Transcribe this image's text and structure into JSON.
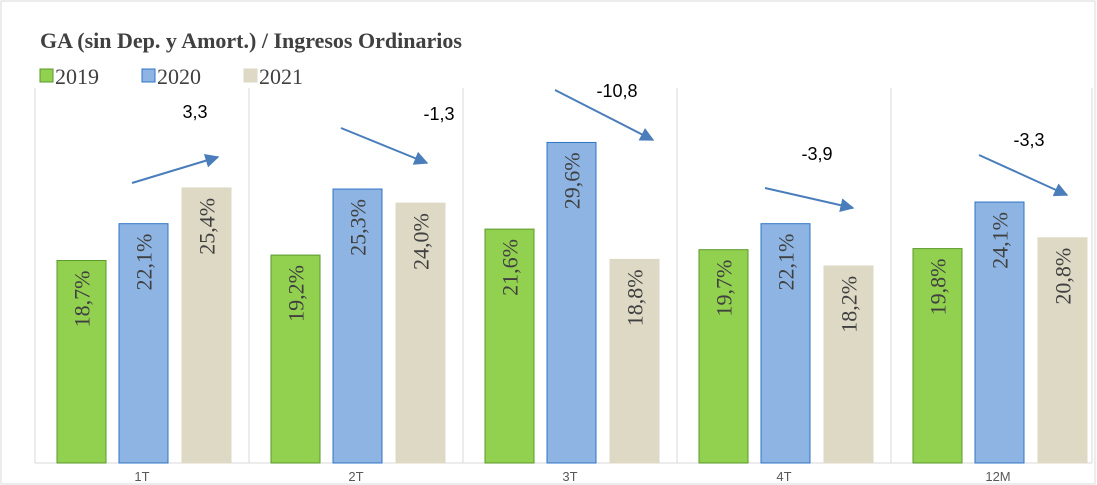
{
  "chart_data": {
    "type": "bar",
    "title": "GA (sin Dep. y Amort.) / Ingresos Ordinarios",
    "categories": [
      "1T",
      "2T",
      "3T",
      "4T",
      "12M"
    ],
    "series": [
      {
        "name": "2019",
        "color": "#92d050",
        "values": [
          18.7,
          19.2,
          21.6,
          19.7,
          19.8
        ],
        "value_labels": [
          "18,7%",
          "19,2%",
          "21,6%",
          "19,7%",
          "19,8%"
        ]
      },
      {
        "name": "2020",
        "color": "#8db4e2",
        "values": [
          22.1,
          25.3,
          29.6,
          22.1,
          24.1
        ],
        "value_labels": [
          "22,1%",
          "25,3%",
          "29,6%",
          "22,1%",
          "24,1%"
        ]
      },
      {
        "name": "2021",
        "color": "#ddd9c4",
        "values": [
          25.4,
          24.0,
          18.8,
          18.2,
          20.8
        ],
        "value_labels": [
          "25,4%",
          "24,0%",
          "18,8%",
          "18,2%",
          "20,8%"
        ]
      }
    ],
    "annotations": [
      "3,3",
      "-1,3",
      "-10,8",
      "-3,9",
      "-3,3"
    ],
    "ylim": [
      0,
      35
    ]
  }
}
